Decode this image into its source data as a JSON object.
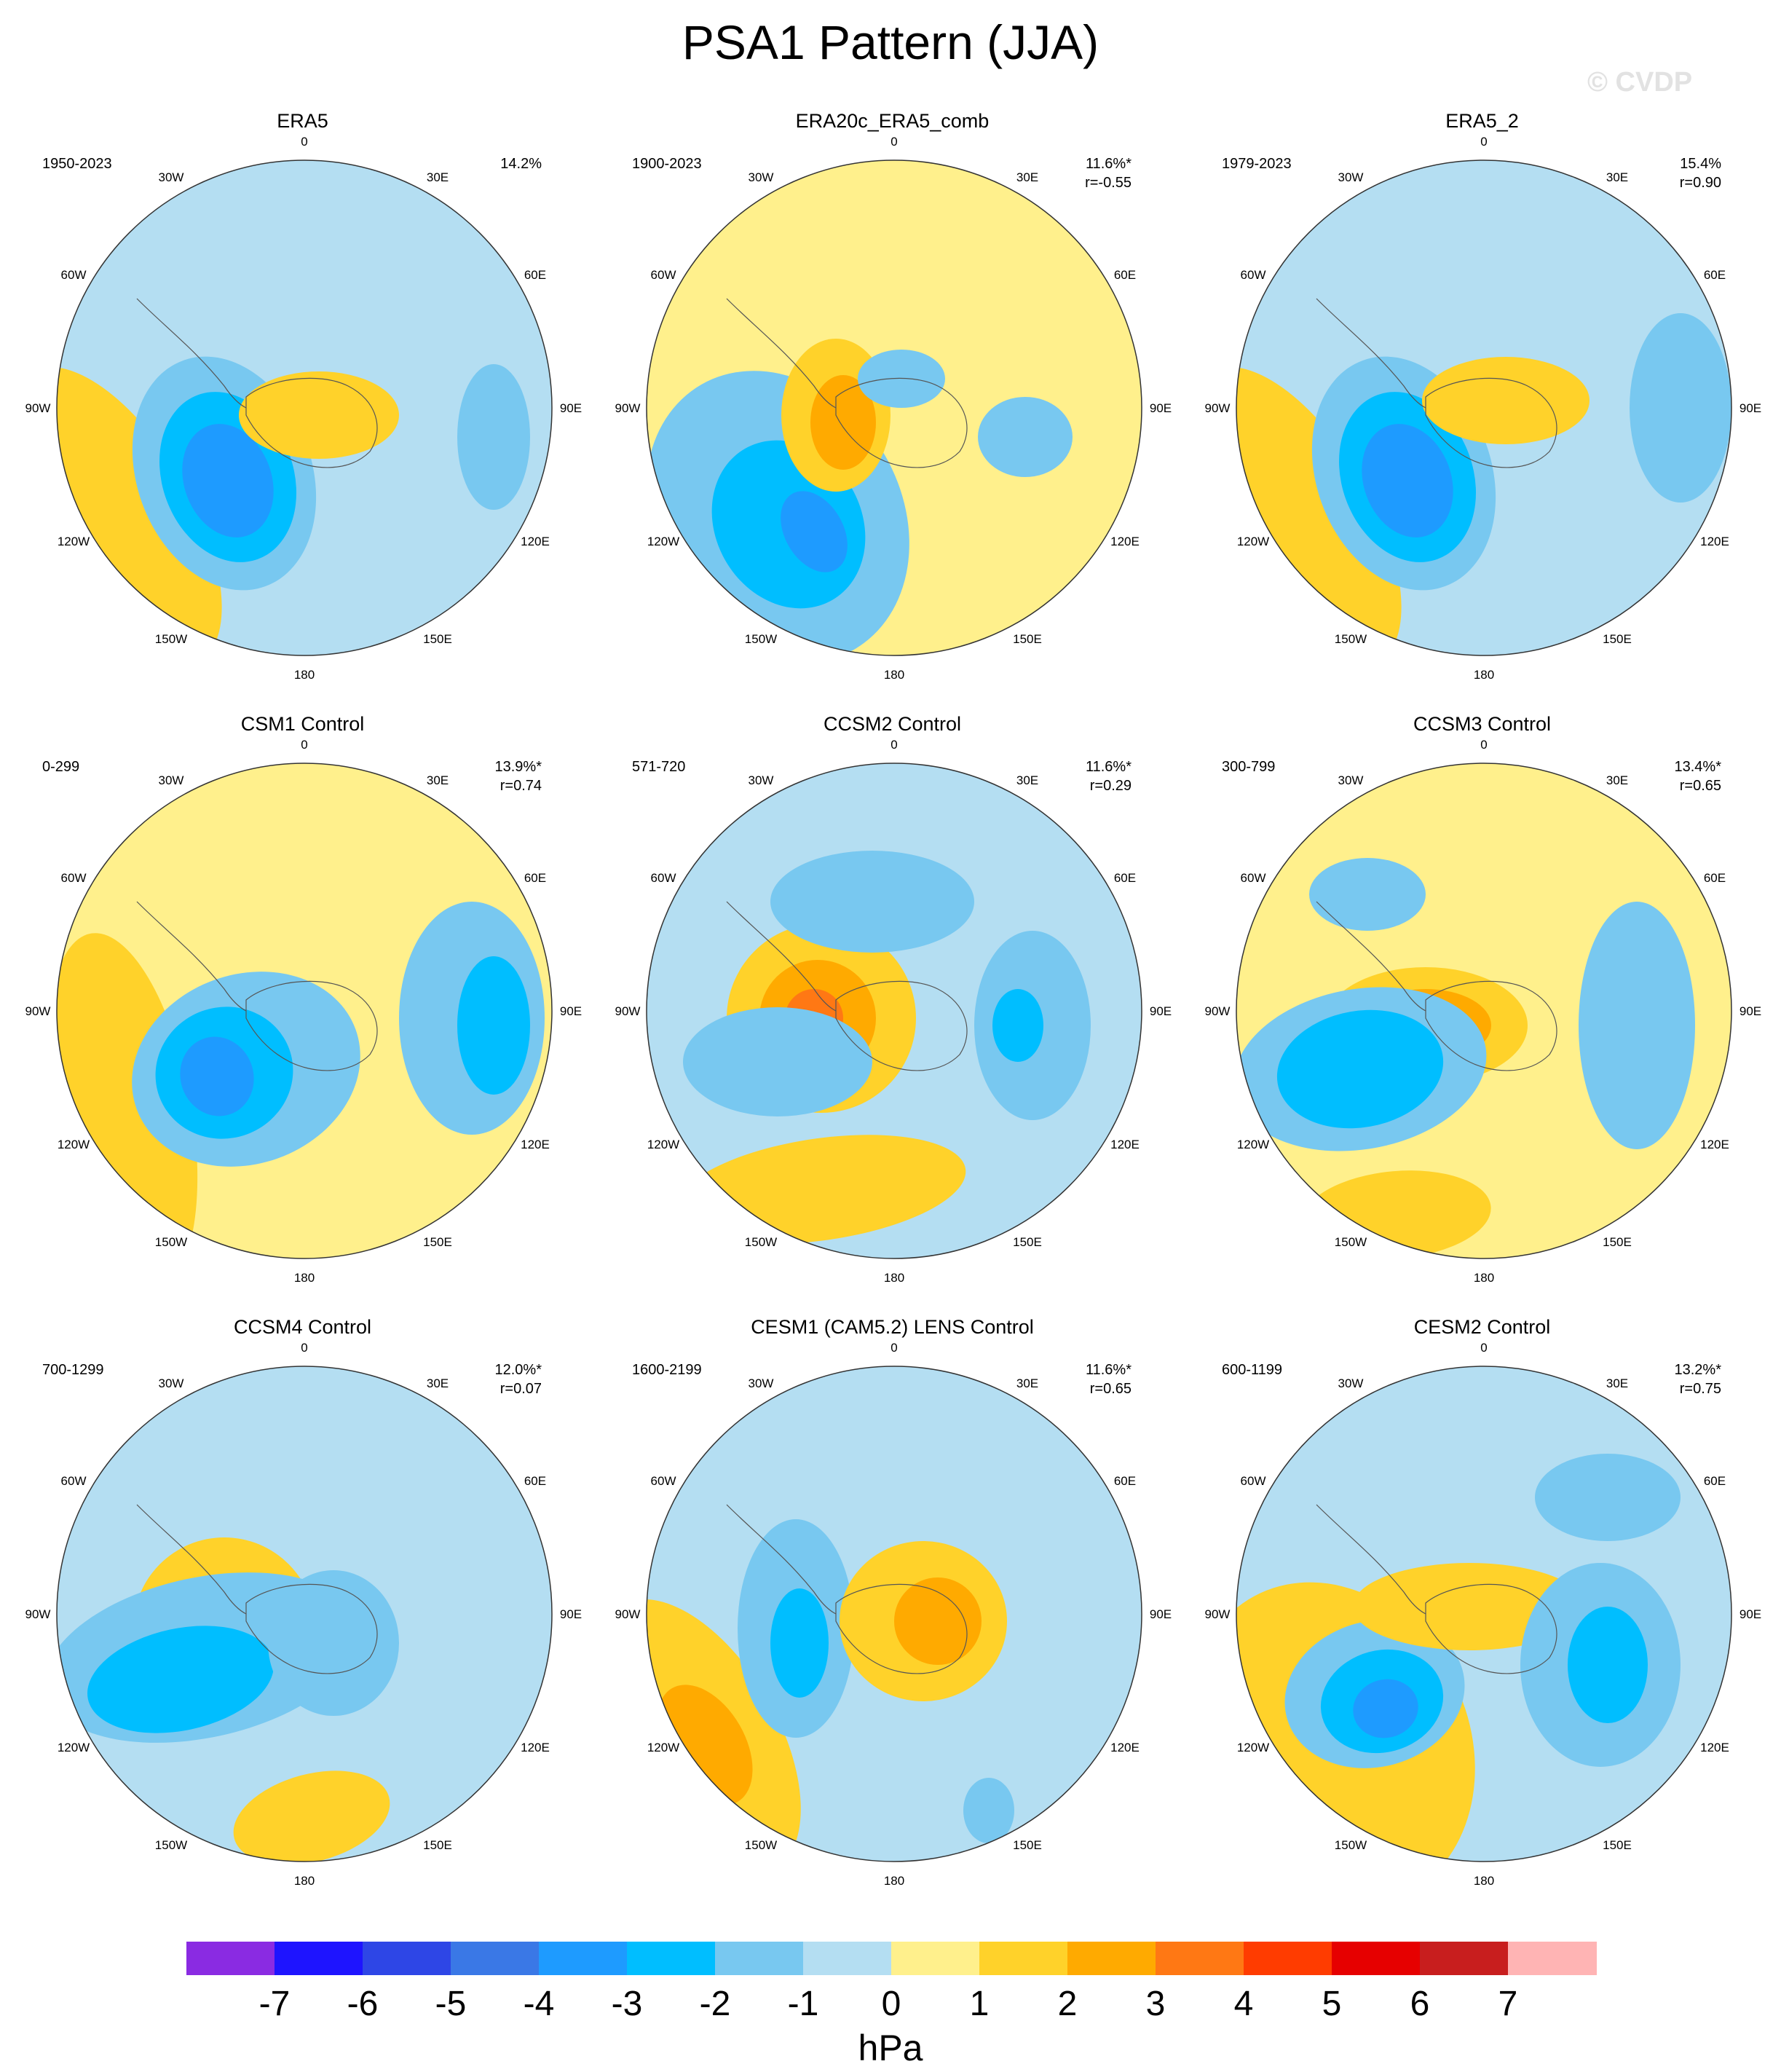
{
  "title": "PSA1 Pattern (JJA)",
  "watermark": "© CVDP",
  "units": "hPa",
  "lon_labels": [
    "0",
    "30E",
    "60E",
    "90E",
    "120E",
    "150E",
    "180",
    "150W",
    "120W",
    "90W",
    "60W",
    "30W"
  ],
  "colorbar": {
    "colors": [
      "#8a2be2",
      "#1e14ff",
      "#2e46e6",
      "#3a78e6",
      "#1e9bff",
      "#00beff",
      "#78c8f0",
      "#b4def2",
      "#fff08c",
      "#ffd22a",
      "#ffaa00",
      "#ff7814",
      "#ff3c00",
      "#e60000",
      "#c81e1e",
      "#ffb4b4"
    ],
    "ticks": [
      "-7",
      "-6",
      "-5",
      "-4",
      "-3",
      "-2",
      "-1",
      "0",
      "1",
      "2",
      "3",
      "4",
      "5",
      "6",
      "7"
    ]
  },
  "panels": [
    {
      "title": "ERA5",
      "period": "1950-2023",
      "pct": "14.2%",
      "r": ""
    },
    {
      "title": "ERA20c_ERA5_comb",
      "period": "1900-2023",
      "pct": "11.6%*",
      "r": "r=-0.55"
    },
    {
      "title": "ERA5_2",
      "period": "1979-2023",
      "pct": "15.4%",
      "r": "r=0.90"
    },
    {
      "title": "CSM1 Control",
      "period": "0-299",
      "pct": "13.9%*",
      "r": "r=0.74"
    },
    {
      "title": "CCSM2 Control",
      "period": "571-720",
      "pct": "11.6%*",
      "r": "r=0.29"
    },
    {
      "title": "CCSM3 Control",
      "period": "300-799",
      "pct": "13.4%*",
      "r": "r=0.65"
    },
    {
      "title": "CCSM4 Control",
      "period": "700-1299",
      "pct": "12.0%*",
      "r": "r=0.07"
    },
    {
      "title": "CESM1 (CAM5.2) LENS Control",
      "period": "1600-2199",
      "pct": "11.6%*",
      "r": "r=0.65"
    },
    {
      "title": "CESM2 Control",
      "period": "600-1199",
      "pct": "13.2%*",
      "r": "r=0.75"
    }
  ]
}
